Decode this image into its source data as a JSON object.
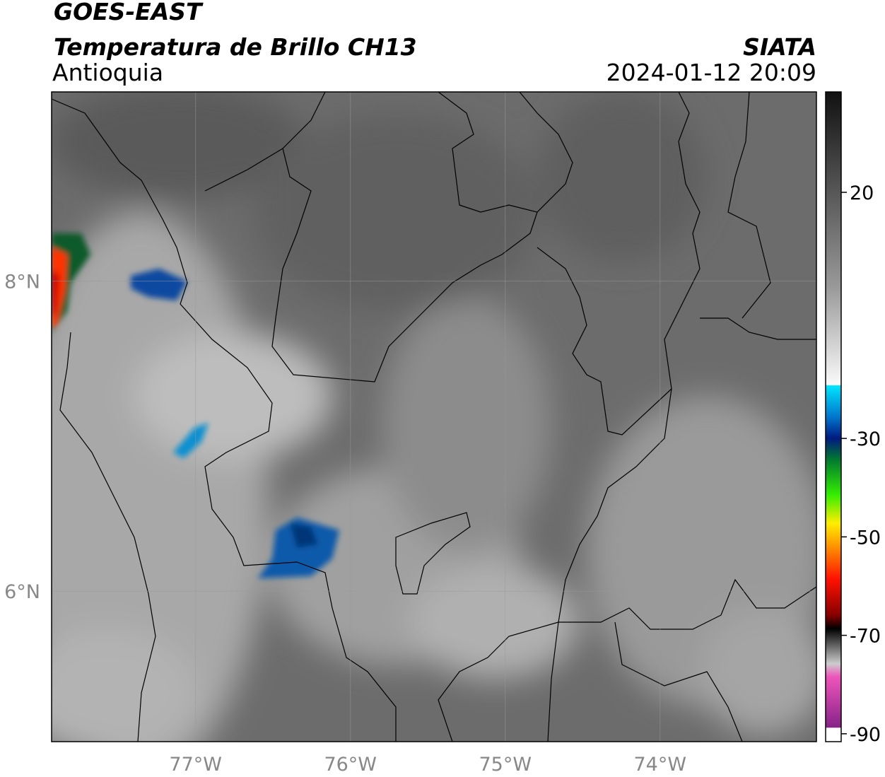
{
  "header": {
    "title": "GOES-EAST",
    "subtitle": "Temperatura de Brillo CH13",
    "region": "Antioquia",
    "source": "SIATA",
    "datetime": "2024-01-12 20:09"
  },
  "map": {
    "xlim": [
      -77.93,
      -72.99
    ],
    "ylim": [
      5.03,
      9.22
    ],
    "xticks": [
      {
        "value": -77,
        "label": "77°W"
      },
      {
        "value": -76,
        "label": "76°W"
      },
      {
        "value": -75,
        "label": "75°W"
      },
      {
        "value": -74,
        "label": "74°W"
      }
    ],
    "yticks": [
      {
        "value": 8,
        "label": "8°N"
      },
      {
        "value": 6,
        "label": "6°N"
      }
    ],
    "grid": true
  },
  "colorbar": {
    "lim": [
      -91.6,
      40.4
    ],
    "ticks": [
      20,
      -30,
      -50,
      -70,
      -90
    ]
  }
}
